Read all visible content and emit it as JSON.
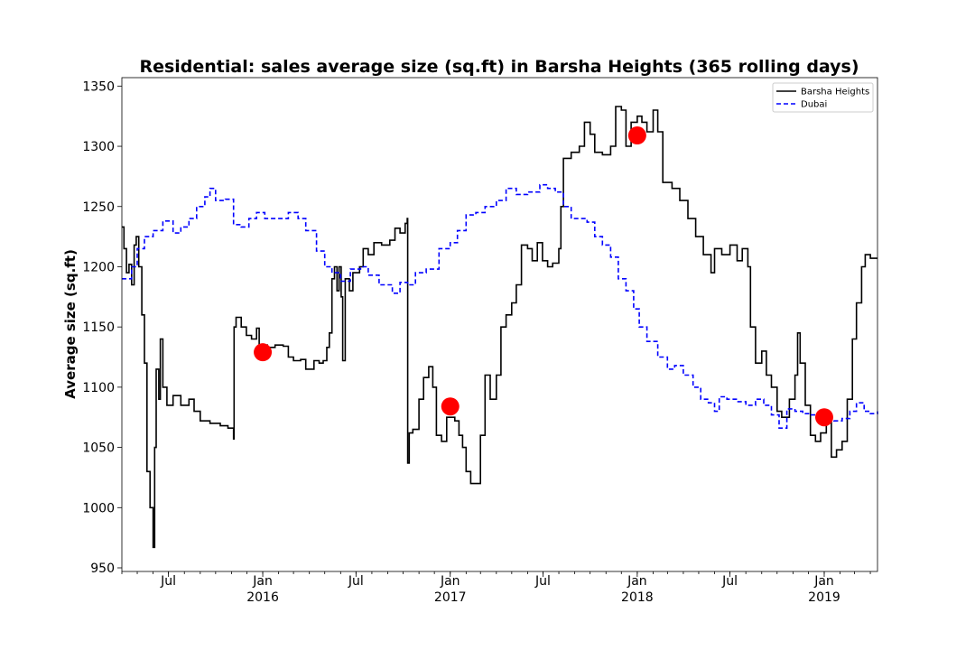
{
  "chart_data": {
    "type": "line",
    "title": "Residential: sales average size (sq.ft) in Barsha Heights (365 rolling days)",
    "xlabel": "",
    "ylabel": "Average size (sq.ft)",
    "ylim": [
      947,
      1357
    ],
    "xlim": [
      "2015-04-01",
      "2019-04-15"
    ],
    "y_ticks": [
      950,
      1000,
      1050,
      1100,
      1150,
      1200,
      1250,
      1300,
      1350
    ],
    "x_ticks": [
      {
        "date": "2015-07-01",
        "label": "Jul",
        "sublabel": ""
      },
      {
        "date": "2016-01-01",
        "label": "Jan",
        "sublabel": "2016"
      },
      {
        "date": "2016-07-01",
        "label": "Jul",
        "sublabel": ""
      },
      {
        "date": "2017-01-01",
        "label": "Jan",
        "sublabel": "2017"
      },
      {
        "date": "2017-07-01",
        "label": "Jul",
        "sublabel": ""
      },
      {
        "date": "2018-01-01",
        "label": "Jan",
        "sublabel": "2018"
      },
      {
        "date": "2018-07-01",
        "label": "Jul",
        "sublabel": ""
      },
      {
        "date": "2019-01-01",
        "label": "Jan",
        "sublabel": "2019"
      }
    ],
    "legend_position": "top-right",
    "series": [
      {
        "name": "Barsha Heights",
        "color": "#000000",
        "style": "solid",
        "points": [
          [
            "2015-04-01",
            1233
          ],
          [
            "2015-04-05",
            1215
          ],
          [
            "2015-04-10",
            1195
          ],
          [
            "2015-04-15",
            1202
          ],
          [
            "2015-04-20",
            1185
          ],
          [
            "2015-04-25",
            1218
          ],
          [
            "2015-04-29",
            1225
          ],
          [
            "2015-05-04",
            1200
          ],
          [
            "2015-05-10",
            1160
          ],
          [
            "2015-05-15",
            1120
          ],
          [
            "2015-05-20",
            1030
          ],
          [
            "2015-05-26",
            1000
          ],
          [
            "2015-06-01",
            967
          ],
          [
            "2015-06-04",
            1050
          ],
          [
            "2015-06-07",
            1115
          ],
          [
            "2015-06-12",
            1090
          ],
          [
            "2015-06-15",
            1140
          ],
          [
            "2015-06-20",
            1100
          ],
          [
            "2015-06-28",
            1085
          ],
          [
            "2015-07-10",
            1093
          ],
          [
            "2015-07-25",
            1085
          ],
          [
            "2015-08-10",
            1090
          ],
          [
            "2015-08-20",
            1080
          ],
          [
            "2015-09-01",
            1072
          ],
          [
            "2015-09-20",
            1070
          ],
          [
            "2015-10-10",
            1068
          ],
          [
            "2015-10-25",
            1066
          ],
          [
            "2015-11-05",
            1057
          ],
          [
            "2015-11-06",
            1150
          ],
          [
            "2015-11-10",
            1158
          ],
          [
            "2015-11-20",
            1150
          ],
          [
            "2015-11-30",
            1143
          ],
          [
            "2015-12-10",
            1140
          ],
          [
            "2015-12-20",
            1149
          ],
          [
            "2015-12-25",
            1135
          ],
          [
            "2016-01-10",
            1133
          ],
          [
            "2016-01-25",
            1135
          ],
          [
            "2016-02-10",
            1134
          ],
          [
            "2016-02-20",
            1125
          ],
          [
            "2016-03-01",
            1122
          ],
          [
            "2016-03-15",
            1123
          ],
          [
            "2016-03-25",
            1115
          ],
          [
            "2016-04-10",
            1122
          ],
          [
            "2016-04-20",
            1120
          ],
          [
            "2016-04-28",
            1122
          ],
          [
            "2016-05-05",
            1133
          ],
          [
            "2016-05-10",
            1145
          ],
          [
            "2016-05-15",
            1190
          ],
          [
            "2016-05-20",
            1200
          ],
          [
            "2016-05-25",
            1180
          ],
          [
            "2016-05-29",
            1200
          ],
          [
            "2016-06-02",
            1175
          ],
          [
            "2016-06-05",
            1122
          ],
          [
            "2016-06-10",
            1190
          ],
          [
            "2016-06-18",
            1180
          ],
          [
            "2016-06-25",
            1195
          ],
          [
            "2016-07-08",
            1200
          ],
          [
            "2016-07-15",
            1215
          ],
          [
            "2016-07-25",
            1210
          ],
          [
            "2016-08-05",
            1220
          ],
          [
            "2016-08-20",
            1218
          ],
          [
            "2016-09-05",
            1222
          ],
          [
            "2016-09-15",
            1232
          ],
          [
            "2016-09-25",
            1228
          ],
          [
            "2016-10-05",
            1236
          ],
          [
            "2016-10-09",
            1240
          ],
          [
            "2016-10-10",
            1037
          ],
          [
            "2016-10-13",
            1062
          ],
          [
            "2016-10-20",
            1065
          ],
          [
            "2016-11-01",
            1090
          ],
          [
            "2016-11-10",
            1108
          ],
          [
            "2016-11-20",
            1117
          ],
          [
            "2016-11-28",
            1100
          ],
          [
            "2016-12-05",
            1060
          ],
          [
            "2016-12-15",
            1055
          ],
          [
            "2016-12-25",
            1075
          ],
          [
            "2017-01-10",
            1072
          ],
          [
            "2017-01-18",
            1060
          ],
          [
            "2017-01-25",
            1050
          ],
          [
            "2017-02-01",
            1030
          ],
          [
            "2017-02-10",
            1020
          ],
          [
            "2017-02-20",
            1020
          ],
          [
            "2017-03-01",
            1060
          ],
          [
            "2017-03-10",
            1110
          ],
          [
            "2017-03-20",
            1090
          ],
          [
            "2017-04-01",
            1110
          ],
          [
            "2017-04-10",
            1150
          ],
          [
            "2017-04-20",
            1160
          ],
          [
            "2017-05-01",
            1170
          ],
          [
            "2017-05-10",
            1185
          ],
          [
            "2017-05-20",
            1218
          ],
          [
            "2017-06-01",
            1215
          ],
          [
            "2017-06-10",
            1205
          ],
          [
            "2017-06-20",
            1220
          ],
          [
            "2017-06-30",
            1205
          ],
          [
            "2017-07-10",
            1200
          ],
          [
            "2017-07-20",
            1203
          ],
          [
            "2017-08-01",
            1215
          ],
          [
            "2017-08-05",
            1250
          ],
          [
            "2017-08-10",
            1290
          ],
          [
            "2017-08-25",
            1295
          ],
          [
            "2017-09-10",
            1300
          ],
          [
            "2017-09-20",
            1320
          ],
          [
            "2017-10-01",
            1310
          ],
          [
            "2017-10-10",
            1295
          ],
          [
            "2017-10-25",
            1293
          ],
          [
            "2017-11-10",
            1300
          ],
          [
            "2017-11-20",
            1333
          ],
          [
            "2017-12-01",
            1330
          ],
          [
            "2017-12-10",
            1300
          ],
          [
            "2017-12-20",
            1320
          ],
          [
            "2018-01-01",
            1325
          ],
          [
            "2018-01-10",
            1320
          ],
          [
            "2018-01-20",
            1312
          ],
          [
            "2018-02-01",
            1330
          ],
          [
            "2018-02-10",
            1312
          ],
          [
            "2018-02-20",
            1270
          ],
          [
            "2018-03-10",
            1265
          ],
          [
            "2018-03-25",
            1255
          ],
          [
            "2018-04-10",
            1240
          ],
          [
            "2018-04-25",
            1225
          ],
          [
            "2018-05-10",
            1210
          ],
          [
            "2018-05-25",
            1195
          ],
          [
            "2018-06-01",
            1215
          ],
          [
            "2018-06-15",
            1210
          ],
          [
            "2018-07-01",
            1218
          ],
          [
            "2018-07-15",
            1205
          ],
          [
            "2018-07-25",
            1215
          ],
          [
            "2018-08-05",
            1200
          ],
          [
            "2018-08-10",
            1150
          ],
          [
            "2018-08-20",
            1120
          ],
          [
            "2018-09-01",
            1130
          ],
          [
            "2018-09-10",
            1110
          ],
          [
            "2018-09-20",
            1100
          ],
          [
            "2018-10-01",
            1080
          ],
          [
            "2018-10-10",
            1075
          ],
          [
            "2018-10-25",
            1090
          ],
          [
            "2018-11-05",
            1110
          ],
          [
            "2018-11-10",
            1145
          ],
          [
            "2018-11-15",
            1120
          ],
          [
            "2018-11-25",
            1085
          ],
          [
            "2018-12-05",
            1060
          ],
          [
            "2018-12-15",
            1055
          ],
          [
            "2018-12-25",
            1062
          ],
          [
            "2019-01-05",
            1070
          ],
          [
            "2019-01-10",
            1072
          ],
          [
            "2019-01-15",
            1042
          ],
          [
            "2019-01-25",
            1048
          ],
          [
            "2019-02-05",
            1055
          ],
          [
            "2019-02-15",
            1090
          ],
          [
            "2019-02-25",
            1140
          ],
          [
            "2019-03-05",
            1170
          ],
          [
            "2019-03-15",
            1200
          ],
          [
            "2019-03-22",
            1210
          ],
          [
            "2019-04-01",
            1207
          ],
          [
            "2019-04-15",
            1207
          ]
        ]
      },
      {
        "name": "Dubai",
        "color": "#0000ff",
        "style": "dashed",
        "points": [
          [
            "2015-04-01",
            1190
          ],
          [
            "2015-04-10",
            1190
          ],
          [
            "2015-04-20",
            1200
          ],
          [
            "2015-05-01",
            1215
          ],
          [
            "2015-05-15",
            1225
          ],
          [
            "2015-06-01",
            1230
          ],
          [
            "2015-06-20",
            1238
          ],
          [
            "2015-07-10",
            1228
          ],
          [
            "2015-07-25",
            1233
          ],
          [
            "2015-08-10",
            1240
          ],
          [
            "2015-08-25",
            1250
          ],
          [
            "2015-09-10",
            1258
          ],
          [
            "2015-09-20",
            1265
          ],
          [
            "2015-10-01",
            1255
          ],
          [
            "2015-10-20",
            1256
          ],
          [
            "2015-11-05",
            1235
          ],
          [
            "2015-11-20",
            1233
          ],
          [
            "2015-12-05",
            1240
          ],
          [
            "2015-12-20",
            1245
          ],
          [
            "2016-01-05",
            1240
          ],
          [
            "2016-02-01",
            1240
          ],
          [
            "2016-02-20",
            1245
          ],
          [
            "2016-03-10",
            1240
          ],
          [
            "2016-03-25",
            1230
          ],
          [
            "2016-04-15",
            1213
          ],
          [
            "2016-05-01",
            1200
          ],
          [
            "2016-05-15",
            1195
          ],
          [
            "2016-06-01",
            1188
          ],
          [
            "2016-06-20",
            1198
          ],
          [
            "2016-07-10",
            1200
          ],
          [
            "2016-07-25",
            1193
          ],
          [
            "2016-08-15",
            1185
          ],
          [
            "2016-09-10",
            1178
          ],
          [
            "2016-09-25",
            1187
          ],
          [
            "2016-10-10",
            1185
          ],
          [
            "2016-10-25",
            1195
          ],
          [
            "2016-11-15",
            1198
          ],
          [
            "2016-12-10",
            1215
          ],
          [
            "2017-01-01",
            1220
          ],
          [
            "2017-01-15",
            1230
          ],
          [
            "2017-02-01",
            1243
          ],
          [
            "2017-02-20",
            1245
          ],
          [
            "2017-03-10",
            1250
          ],
          [
            "2017-04-01",
            1255
          ],
          [
            "2017-04-20",
            1265
          ],
          [
            "2017-05-10",
            1260
          ],
          [
            "2017-06-01",
            1262
          ],
          [
            "2017-06-25",
            1268
          ],
          [
            "2017-07-10",
            1265
          ],
          [
            "2017-07-25",
            1262
          ],
          [
            "2017-08-10",
            1250
          ],
          [
            "2017-08-25",
            1240
          ],
          [
            "2017-09-10",
            1240
          ],
          [
            "2017-09-25",
            1237
          ],
          [
            "2017-10-10",
            1225
          ],
          [
            "2017-10-25",
            1218
          ],
          [
            "2017-11-10",
            1208
          ],
          [
            "2017-11-25",
            1190
          ],
          [
            "2017-12-10",
            1180
          ],
          [
            "2017-12-25",
            1165
          ],
          [
            "2018-01-05",
            1150
          ],
          [
            "2018-01-20",
            1138
          ],
          [
            "2018-02-10",
            1125
          ],
          [
            "2018-03-01",
            1115
          ],
          [
            "2018-03-15",
            1118
          ],
          [
            "2018-04-01",
            1110
          ],
          [
            "2018-04-20",
            1100
          ],
          [
            "2018-05-05",
            1090
          ],
          [
            "2018-05-20",
            1087
          ],
          [
            "2018-06-01",
            1080
          ],
          [
            "2018-06-10",
            1092
          ],
          [
            "2018-06-25",
            1090
          ],
          [
            "2018-07-15",
            1088
          ],
          [
            "2018-08-01",
            1085
          ],
          [
            "2018-08-20",
            1090
          ],
          [
            "2018-09-05",
            1085
          ],
          [
            "2018-09-20",
            1077
          ],
          [
            "2018-10-05",
            1066
          ],
          [
            "2018-10-20",
            1082
          ],
          [
            "2018-11-05",
            1080
          ],
          [
            "2018-11-20",
            1078
          ],
          [
            "2018-12-05",
            1077
          ],
          [
            "2018-12-20",
            1075
          ],
          [
            "2019-01-05",
            1073
          ],
          [
            "2019-01-20",
            1072
          ],
          [
            "2019-02-05",
            1074
          ],
          [
            "2019-02-20",
            1080
          ],
          [
            "2019-03-05",
            1087
          ],
          [
            "2019-03-20",
            1080
          ],
          [
            "2019-04-01",
            1078
          ],
          [
            "2019-04-15",
            1080
          ]
        ]
      }
    ],
    "markers": {
      "color": "#ff0000",
      "points": [
        [
          "2016-01-01",
          1129
        ],
        [
          "2017-01-01",
          1084
        ],
        [
          "2018-01-01",
          1309
        ],
        [
          "2019-01-01",
          1075
        ]
      ]
    }
  }
}
